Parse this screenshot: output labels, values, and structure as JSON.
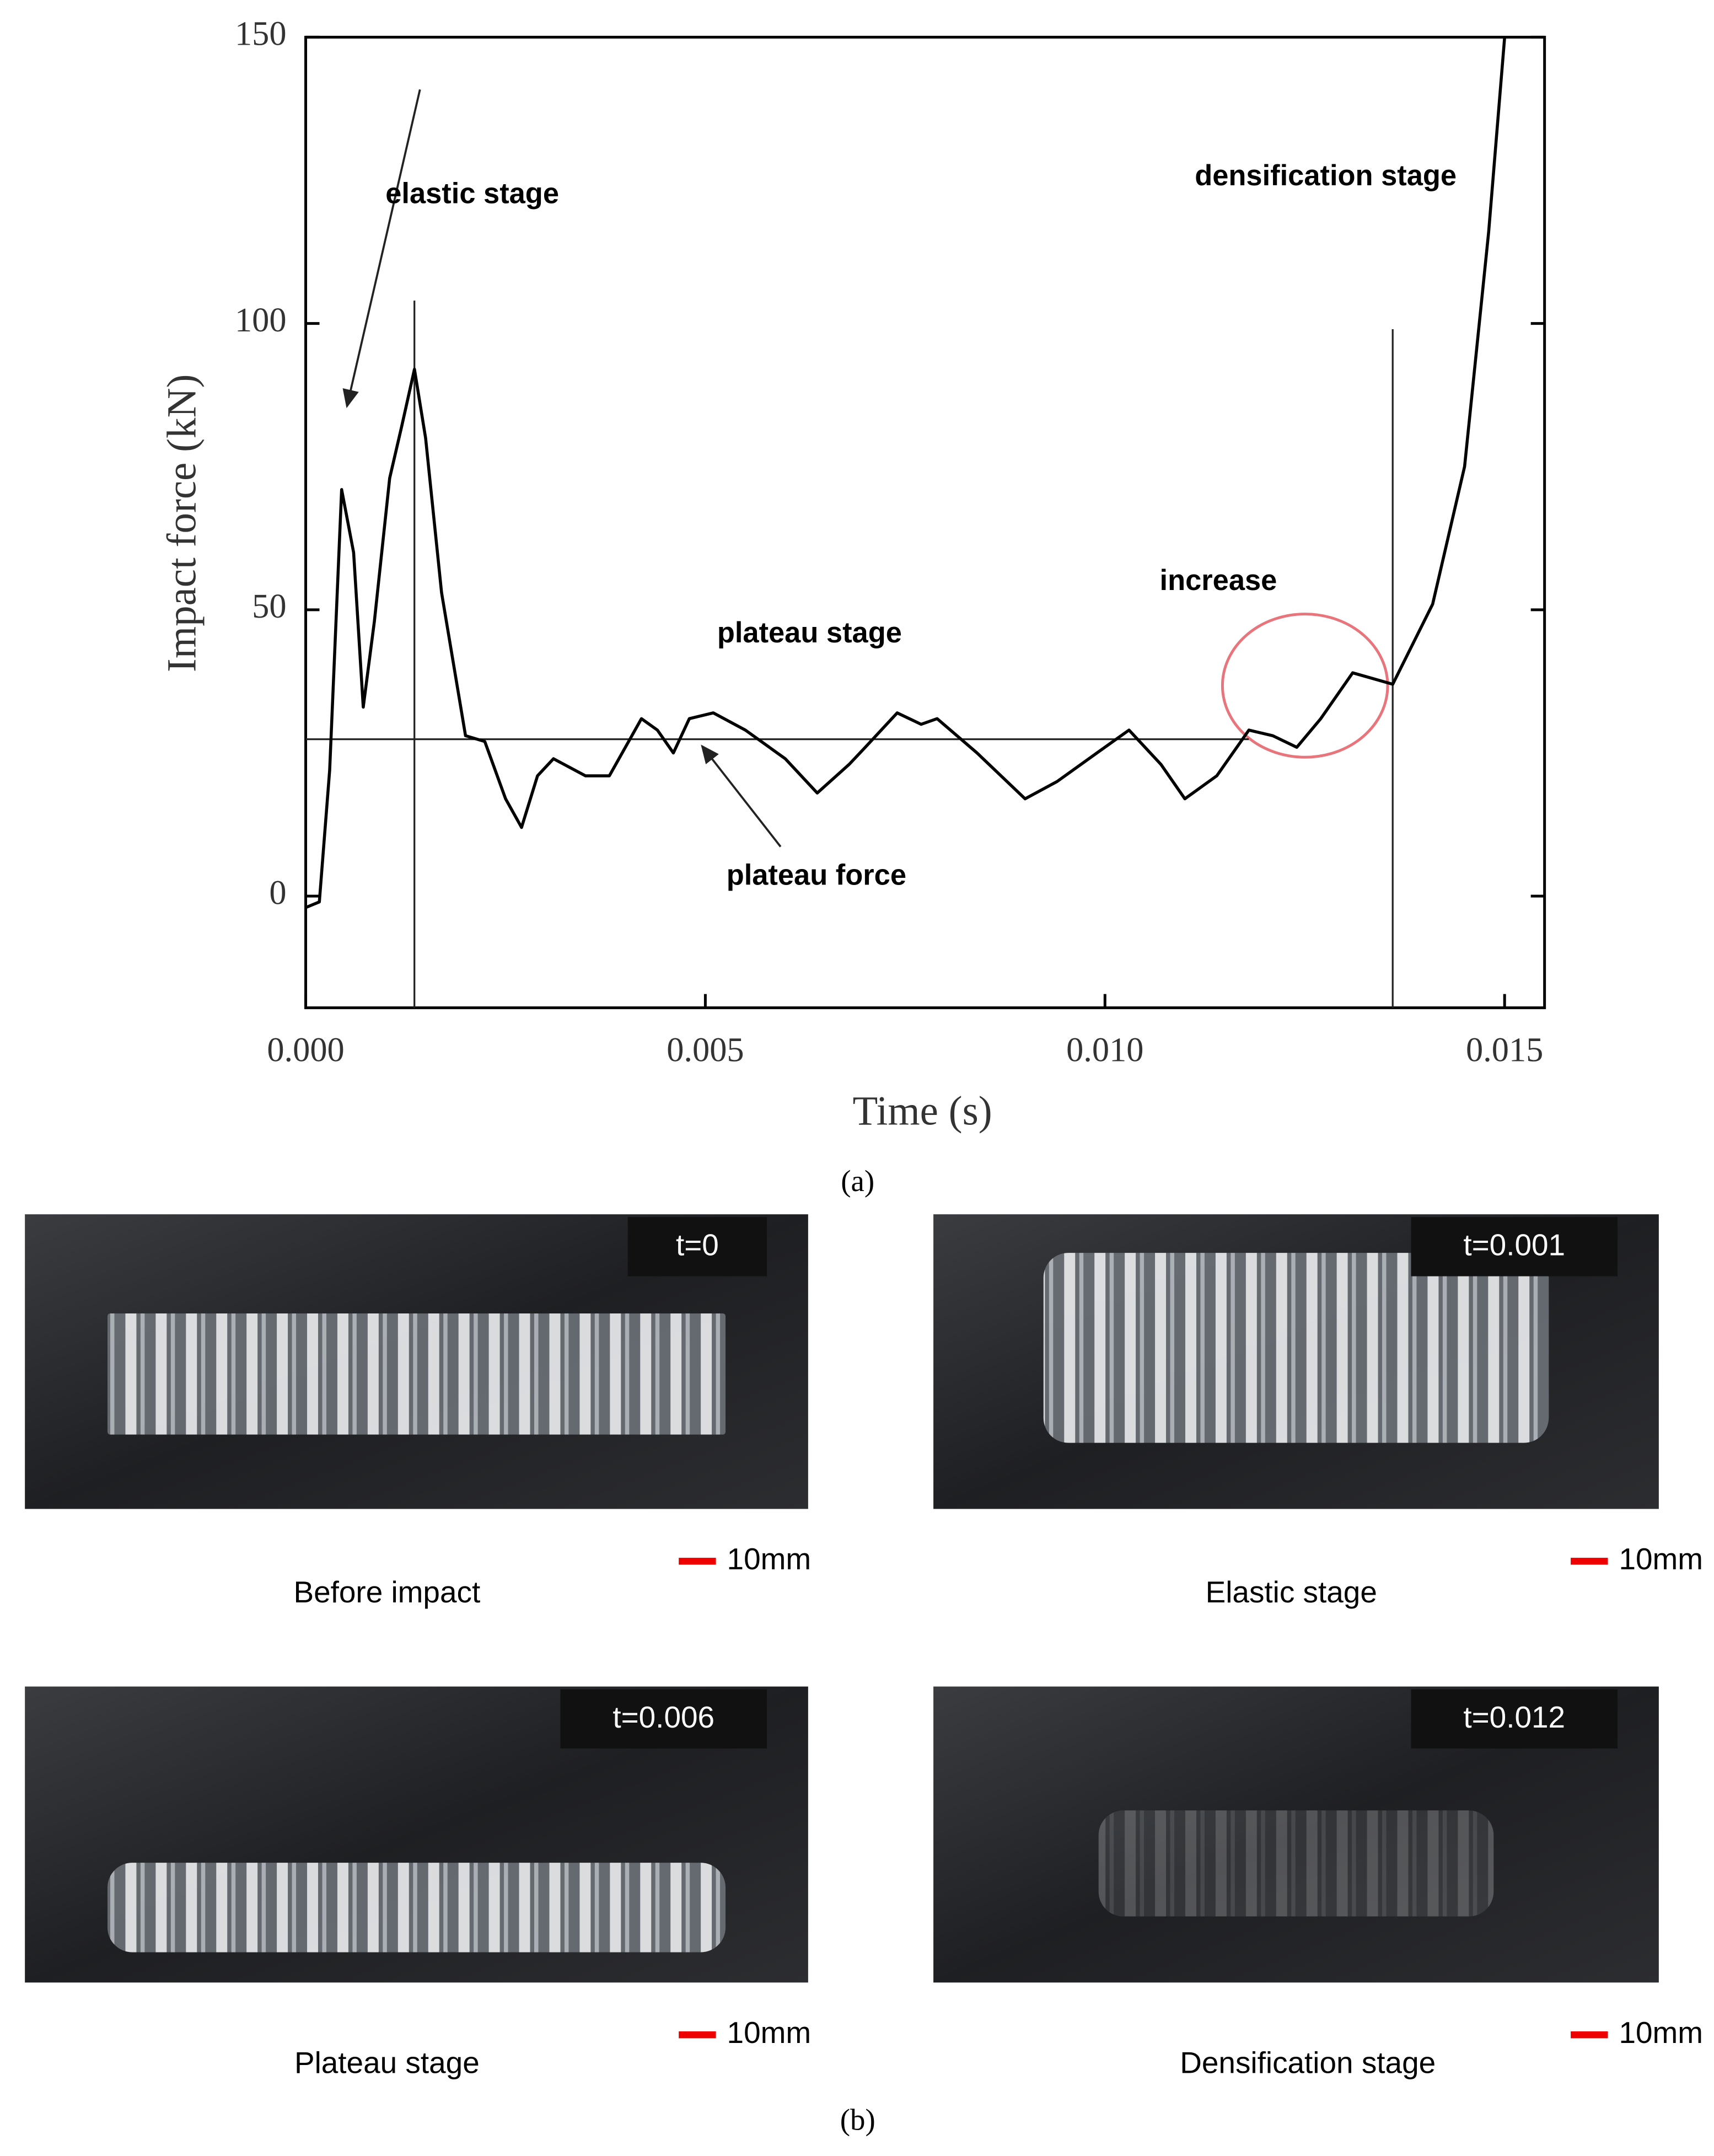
{
  "chart_data": {
    "type": "line",
    "panel_label": "(a)",
    "x_label": "Time (s)",
    "y_label": "Impact force (kN)",
    "x": [
      0,
      0.00017,
      0.0003,
      0.00045,
      0.0006,
      0.00072,
      0.00086,
      0.00105,
      0.0012,
      0.00136,
      0.0015,
      0.0017,
      0.002,
      0.00224,
      0.0025,
      0.0027,
      0.0029,
      0.0031,
      0.0035,
      0.0038,
      0.0042,
      0.0044,
      0.0046,
      0.0048,
      0.0051,
      0.0055,
      0.006,
      0.0064,
      0.0068,
      0.007,
      0.0074,
      0.0077,
      0.0079,
      0.0084,
      0.009,
      0.0094,
      0.0099,
      0.0103,
      0.0107,
      0.011,
      0.0114,
      0.0118,
      0.0121,
      0.0124,
      0.0127,
      0.0131,
      0.0136,
      0.0141,
      0.0145,
      0.0148,
      0.015
    ],
    "values": [
      -2,
      -1,
      22,
      71,
      60,
      33,
      48,
      73,
      82,
      92,
      80,
      53,
      28,
      27,
      17,
      12,
      21,
      24,
      21,
      21,
      31,
      29,
      25,
      31,
      32,
      29,
      24,
      18,
      23,
      26,
      32,
      30,
      31,
      25,
      17,
      20,
      25,
      29,
      23,
      17,
      21,
      29,
      28,
      26,
      31,
      39,
      37,
      51,
      75,
      116,
      150
    ],
    "color": "#000000",
    "xlim": [
      0,
      0.0155
    ],
    "xticks": [
      {
        "value": 0,
        "label": "0.000"
      },
      {
        "value": 0.005,
        "label": "0.005"
      },
      {
        "value": 0.01,
        "label": "0.010"
      },
      {
        "value": 0.015,
        "label": "0.015"
      }
    ],
    "ylim": [
      -19.5,
      150
    ],
    "yticks": [
      0,
      50,
      100,
      150
    ],
    "plateau_line": {
      "y": 27.4,
      "x_end": 0.0118
    },
    "stage_lines": [
      {
        "x": 0.00136,
        "y_top": 104
      },
      {
        "x": 0.0136,
        "y_top": 99
      }
    ],
    "annotations": [
      "elastic stage",
      "plateau stage",
      "plateau force",
      "increase",
      "densification stage"
    ]
  },
  "figure_b": {
    "panel_label": "(b)",
    "photos": [
      {
        "time": "t=0",
        "caption": "Before impact",
        "scale": "10mm"
      },
      {
        "time": "t=0.001",
        "caption": "Elastic stage",
        "scale": "10mm"
      },
      {
        "time": "t=0.006",
        "caption": "Plateau stage",
        "scale": "10mm"
      },
      {
        "time": "t=0.012",
        "caption": "Densification stage",
        "scale": "10mm"
      }
    ]
  }
}
